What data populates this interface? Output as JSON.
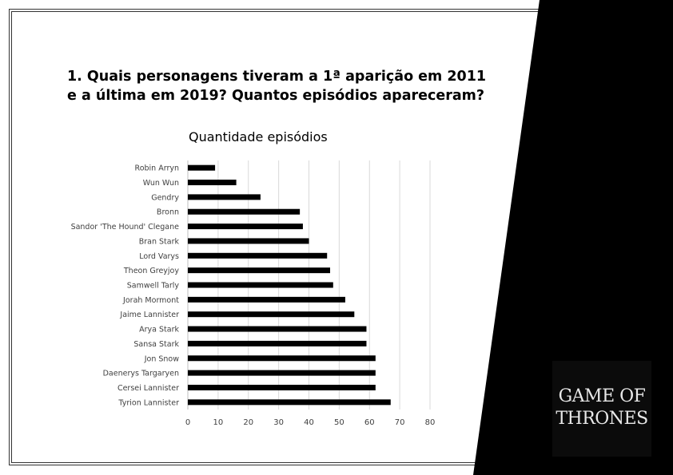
{
  "slide": {
    "question_line1": "1. Quais personagens tiveram a 1ª aparição em 2011",
    "question_line2": "e a última em 2019? Quantos episódios apareceram?"
  },
  "logo": {
    "line1": "GAME OF",
    "line2": "THRONES"
  },
  "colors": {
    "bar": "#000000",
    "grid": "#d9d9d9",
    "background": "#ffffff",
    "wedge": "#000000"
  },
  "chart_data": {
    "type": "bar",
    "orientation": "horizontal",
    "title": "Quantidade episódios",
    "categories": [
      "Robin Arryn",
      "Wun Wun",
      "Gendry",
      "Bronn",
      "Sandor 'The Hound' Clegane",
      "Bran Stark",
      "Lord Varys",
      "Theon Greyjoy",
      "Samwell Tarly",
      "Jorah Mormont",
      "Jaime Lannister",
      "Arya Stark",
      "Sansa Stark",
      "Jon Snow",
      "Daenerys Targaryen",
      "Cersei Lannister",
      "Tyrion Lannister"
    ],
    "values": [
      9,
      16,
      24,
      37,
      38,
      40,
      46,
      47,
      48,
      52,
      55,
      59,
      59,
      62,
      62,
      62,
      67
    ],
    "xlim": [
      0,
      80
    ],
    "xticks": [
      "0",
      "10",
      "20",
      "30",
      "40",
      "50",
      "60",
      "70",
      "80"
    ],
    "grid": true,
    "legend": "none"
  }
}
